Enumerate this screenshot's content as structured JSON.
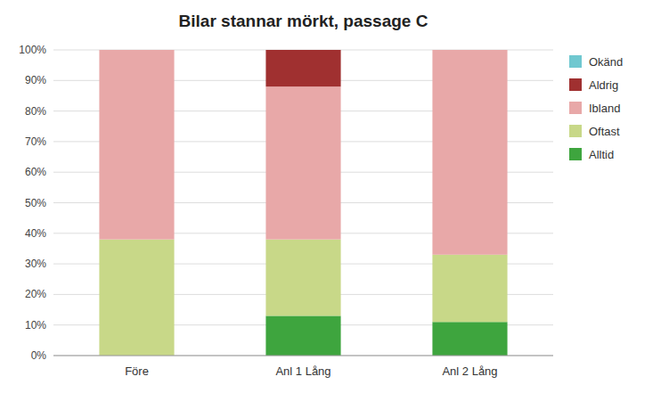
{
  "chart_data": {
    "type": "bar",
    "stacked": true,
    "title": "Bilar stannar mörkt, passage C",
    "categories": [
      "Före",
      "Anl 1 Lång",
      "Anl 2 Lång"
    ],
    "series": [
      {
        "name": "Alltid",
        "color": "#3EA53E",
        "values": [
          0,
          0.13,
          0.11
        ]
      },
      {
        "name": "Oftast",
        "color": "#C8D888",
        "values": [
          0.38,
          0.25,
          0.22
        ]
      },
      {
        "name": "Ibland",
        "color": "#E8A8A8",
        "values": [
          0.62,
          0.5,
          0.67
        ]
      },
      {
        "name": "Aldrig",
        "color": "#A03030",
        "values": [
          0.0,
          0.12,
          0.0
        ]
      },
      {
        "name": "Okänd",
        "color": "#70C8D0",
        "values": [
          0.0,
          0.0,
          0.0
        ]
      }
    ],
    "ylim": [
      0,
      1.0
    ],
    "yticks": [
      {
        "value": 0,
        "label": "0%"
      },
      {
        "value": 0.1,
        "label": "10%"
      },
      {
        "value": 0.2,
        "label": "20%"
      },
      {
        "value": 0.3,
        "label": "30%"
      },
      {
        "value": 0.4,
        "label": "40%"
      },
      {
        "value": 0.5,
        "label": "50%"
      },
      {
        "value": 0.6,
        "label": "60%"
      },
      {
        "value": 0.7,
        "label": "70%"
      },
      {
        "value": 0.8,
        "label": "80%"
      },
      {
        "value": 0.9,
        "label": "90%"
      },
      {
        "value": 1.0,
        "label": "100%"
      }
    ],
    "grid": true,
    "legend": "right"
  }
}
